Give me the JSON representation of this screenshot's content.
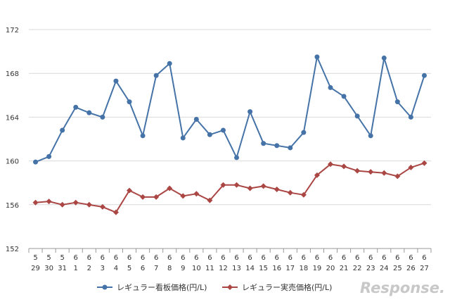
{
  "chart_data": {
    "type": "line",
    "x": [
      [
        "5",
        "29"
      ],
      [
        "5",
        "30"
      ],
      [
        "5",
        "31"
      ],
      [
        "6",
        "1"
      ],
      [
        "6",
        "2"
      ],
      [
        "6",
        "3"
      ],
      [
        "6",
        "4"
      ],
      [
        "6",
        "5"
      ],
      [
        "6",
        "6"
      ],
      [
        "6",
        "7"
      ],
      [
        "6",
        "8"
      ],
      [
        "6",
        "9"
      ],
      [
        "6",
        "10"
      ],
      [
        "6",
        "11"
      ],
      [
        "6",
        "12"
      ],
      [
        "6",
        "13"
      ],
      [
        "6",
        "14"
      ],
      [
        "6",
        "15"
      ],
      [
        "6",
        "16"
      ],
      [
        "6",
        "17"
      ],
      [
        "6",
        "18"
      ],
      [
        "6",
        "19"
      ],
      [
        "6",
        "20"
      ],
      [
        "6",
        "21"
      ],
      [
        "6",
        "22"
      ],
      [
        "6",
        "23"
      ],
      [
        "6",
        "24"
      ],
      [
        "6",
        "25"
      ],
      [
        "6",
        "26"
      ],
      [
        "6",
        "27"
      ]
    ],
    "yticks": [
      152,
      156,
      160,
      164,
      168,
      172
    ],
    "ylim": [
      152,
      172
    ],
    "grid": true,
    "legend_position": "bottom",
    "series": [
      {
        "name": "レギュラー看板価格(円/L)",
        "color": "#4573a7",
        "marker": "circle",
        "values": [
          159.9,
          160.4,
          162.8,
          164.9,
          164.4,
          164.0,
          167.3,
          165.4,
          162.3,
          167.8,
          168.9,
          162.1,
          163.8,
          162.4,
          162.8,
          160.3,
          164.5,
          161.6,
          161.4,
          161.2,
          162.6,
          169.5,
          166.7,
          165.9,
          164.1,
          162.3,
          169.4,
          165.4,
          164.0,
          167.8
        ]
      },
      {
        "name": "レギュラー実売価格(円/L)",
        "color": "#aa4643",
        "marker": "diamond",
        "values": [
          156.2,
          156.3,
          156.0,
          156.2,
          156.0,
          155.8,
          155.3,
          157.3,
          156.7,
          156.7,
          157.5,
          156.8,
          157.0,
          156.4,
          157.8,
          157.8,
          157.5,
          157.7,
          157.4,
          157.1,
          156.9,
          158.7,
          159.7,
          159.5,
          159.1,
          159.0,
          158.9,
          158.6,
          159.4,
          159.8
        ]
      }
    ]
  },
  "watermark": "Response."
}
